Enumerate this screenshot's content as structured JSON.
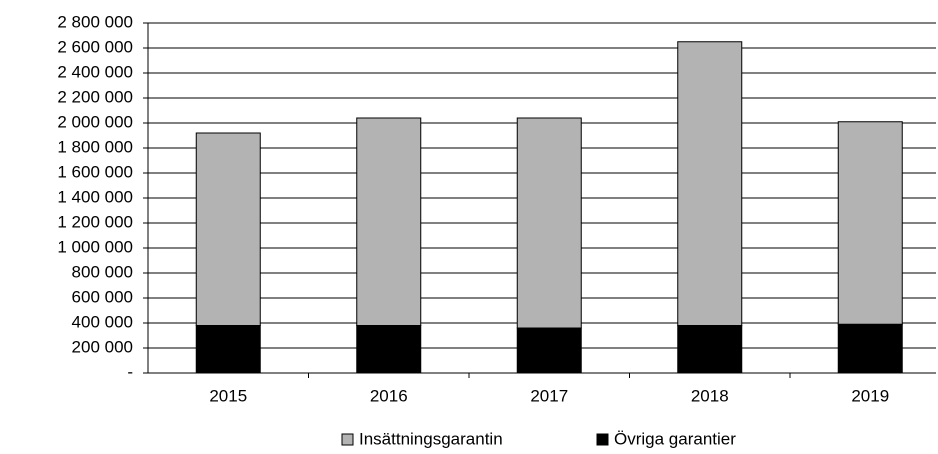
{
  "chart_data": {
    "type": "stacked_bar",
    "categories": [
      "2015",
      "2016",
      "2017",
      "2018",
      "2019"
    ],
    "series": [
      {
        "name": "Insättningsgarantin",
        "color": "#b3b3b3",
        "values": [
          1540000,
          1660000,
          1680000,
          2270000,
          1620000
        ]
      },
      {
        "name": "Övriga garantier",
        "color": "#000000",
        "values": [
          380000,
          380000,
          360000,
          380000,
          390000
        ]
      }
    ],
    "ylim": [
      0,
      2800000
    ],
    "yticks": [
      {
        "value": 0,
        "label": "-"
      },
      {
        "value": 200000,
        "label": "200 000"
      },
      {
        "value": 400000,
        "label": "400 000"
      },
      {
        "value": 600000,
        "label": "600 000"
      },
      {
        "value": 800000,
        "label": "800 000"
      },
      {
        "value": 1000000,
        "label": "1 000 000"
      },
      {
        "value": 1200000,
        "label": "1 200 000"
      },
      {
        "value": 1400000,
        "label": "1 400 000"
      },
      {
        "value": 1600000,
        "label": "1 600 000"
      },
      {
        "value": 1800000,
        "label": "1 800 000"
      },
      {
        "value": 2000000,
        "label": "2 000 000"
      },
      {
        "value": 2200000,
        "label": "2 200 000"
      },
      {
        "value": 2400000,
        "label": "2 400 000"
      },
      {
        "value": 2600000,
        "label": "2 600 000"
      },
      {
        "value": 2800000,
        "label": "2 800 000"
      }
    ],
    "grid": true
  }
}
